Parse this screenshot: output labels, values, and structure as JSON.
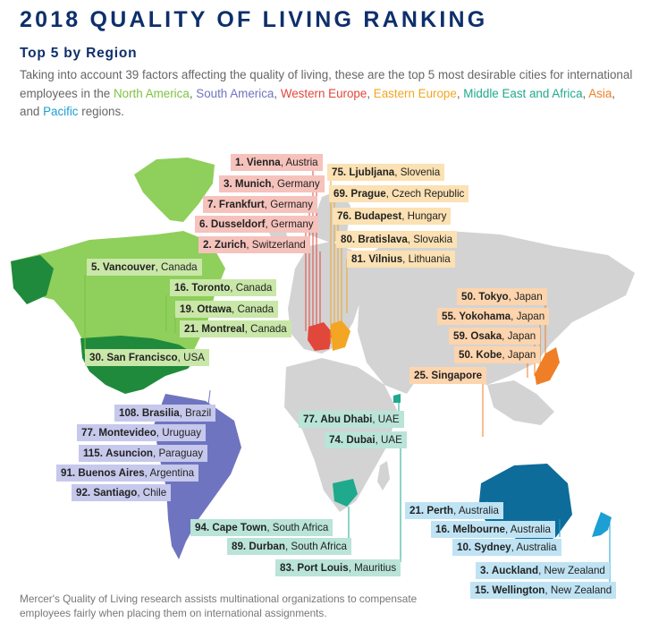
{
  "title": "2018 QUALITY OF LIVING RANKING",
  "subtitle": "Top 5 by Region",
  "intro": {
    "lead": "Taking into account 39 factors affecting the quality of living, these are the top 5 most desirable cities for international employees in the ",
    "sep_comma": ", ",
    "and": ", and ",
    "tail": " regions."
  },
  "regions": [
    {
      "name": "North America",
      "color": "#7cc242"
    },
    {
      "name": "South America",
      "color": "#6f74c0"
    },
    {
      "name": "Western Europe",
      "color": "#e2473c"
    },
    {
      "name": "Eastern Europe",
      "color": "#f2a623"
    },
    {
      "name": "Middle East and Africa",
      "color": "#1fa98d"
    },
    {
      "name": "Asia",
      "color": "#f07e26"
    },
    {
      "name": "Pacific",
      "color": "#1c9fd3"
    }
  ],
  "cities": {
    "north_america": [
      {
        "rank": "5.",
        "city": "Vancouver",
        "country": "Canada"
      },
      {
        "rank": "16.",
        "city": "Toronto",
        "country": "Canada"
      },
      {
        "rank": "19.",
        "city": "Ottawa",
        "country": "Canada"
      },
      {
        "rank": "21.",
        "city": "Montreal",
        "country": "Canada"
      },
      {
        "rank": "30.",
        "city": "San Francisco",
        "country": "USA"
      }
    ],
    "south_america": [
      {
        "rank": "108.",
        "city": "Brasilia",
        "country": "Brazil"
      },
      {
        "rank": "77.",
        "city": "Montevideo",
        "country": "Uruguay"
      },
      {
        "rank": "115.",
        "city": "Asuncion",
        "country": "Paraguay"
      },
      {
        "rank": "91.",
        "city": "Buenos Aires",
        "country": "Argentina"
      },
      {
        "rank": "92.",
        "city": "Santiago",
        "country": "Chile"
      }
    ],
    "western_europe": [
      {
        "rank": "1.",
        "city": "Vienna",
        "country": "Austria"
      },
      {
        "rank": "3.",
        "city": "Munich",
        "country": "Germany"
      },
      {
        "rank": "7.",
        "city": "Frankfurt",
        "country": "Germany"
      },
      {
        "rank": "6.",
        "city": "Dusseldorf",
        "country": "Germany"
      },
      {
        "rank": "2.",
        "city": "Zurich",
        "country": "Switzerland"
      }
    ],
    "eastern_europe": [
      {
        "rank": "75.",
        "city": "Ljubljana",
        "country": "Slovenia"
      },
      {
        "rank": "69.",
        "city": "Prague",
        "country": "Czech Republic"
      },
      {
        "rank": "76.",
        "city": "Budapest",
        "country": "Hungary"
      },
      {
        "rank": "80.",
        "city": "Bratislava",
        "country": "Slovakia"
      },
      {
        "rank": "81.",
        "city": "Vilnius",
        "country": "Lithuania"
      }
    ],
    "middle_east_africa": [
      {
        "rank": "77.",
        "city": "Abu Dhabi",
        "country": "UAE"
      },
      {
        "rank": "74.",
        "city": "Dubai",
        "country": "UAE"
      },
      {
        "rank": "94.",
        "city": "Cape Town",
        "country": "South Africa"
      },
      {
        "rank": "89.",
        "city": "Durban",
        "country": "South Africa"
      },
      {
        "rank": "83.",
        "city": "Port Louis",
        "country": "Mauritius"
      }
    ],
    "asia": [
      {
        "rank": "50.",
        "city": "Tokyo",
        "country": "Japan"
      },
      {
        "rank": "55.",
        "city": "Yokohama",
        "country": "Japan"
      },
      {
        "rank": "59.",
        "city": "Osaka",
        "country": "Japan"
      },
      {
        "rank": "50.",
        "city": "Kobe",
        "country": "Japan"
      },
      {
        "rank": "25.",
        "city": "Singapore",
        "country": ""
      }
    ],
    "pacific": [
      {
        "rank": "21.",
        "city": "Perth",
        "country": "Australia"
      },
      {
        "rank": "16.",
        "city": "Melbourne",
        "country": "Australia"
      },
      {
        "rank": "10.",
        "city": "Sydney",
        "country": "Australia"
      },
      {
        "rank": "3.",
        "city": "Auckland",
        "country": "New Zealand"
      },
      {
        "rank": "15.",
        "city": "Wellington",
        "country": "New Zealand"
      }
    ]
  },
  "footer": "Mercer's Quality of Living research assists multinational organizations to compensate employees fairly when placing them on international assignments.",
  "colors": {
    "title": "#0e2f6b",
    "land_gray": "#d3d3d3",
    "north_america": "#7cc242",
    "south_america": "#6f74c0",
    "western_europe": "#e2473c",
    "eastern_europe": "#f2a623",
    "middle_east_africa": "#1fa98d",
    "asia": "#f07e26",
    "pacific": "#1c9fd3"
  }
}
